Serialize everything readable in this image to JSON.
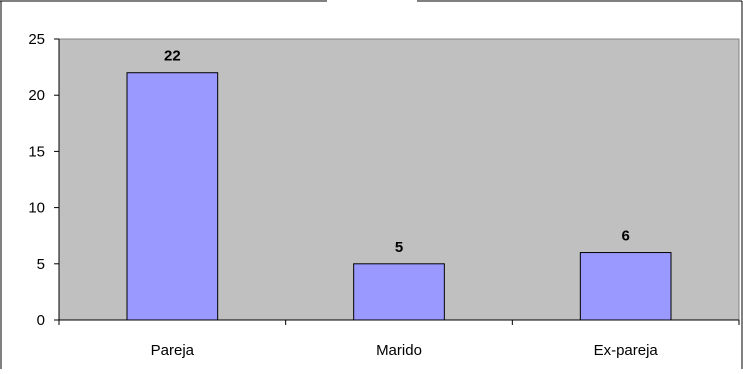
{
  "chart_data": {
    "type": "bar",
    "categories": [
      "Pareja",
      "Marido",
      "Ex-pareja"
    ],
    "values": [
      22,
      5,
      6
    ],
    "data_labels": [
      "22",
      "5",
      "6"
    ],
    "yticks": [
      0,
      5,
      10,
      15,
      20,
      25
    ],
    "ylim": [
      0,
      25
    ],
    "grid": false,
    "legend": "none",
    "colors": {
      "bar_fill": "#9999ff",
      "bar_stroke": "#000000",
      "plot_background": "#c0c0c0",
      "page_background": "#ffffff"
    }
  }
}
